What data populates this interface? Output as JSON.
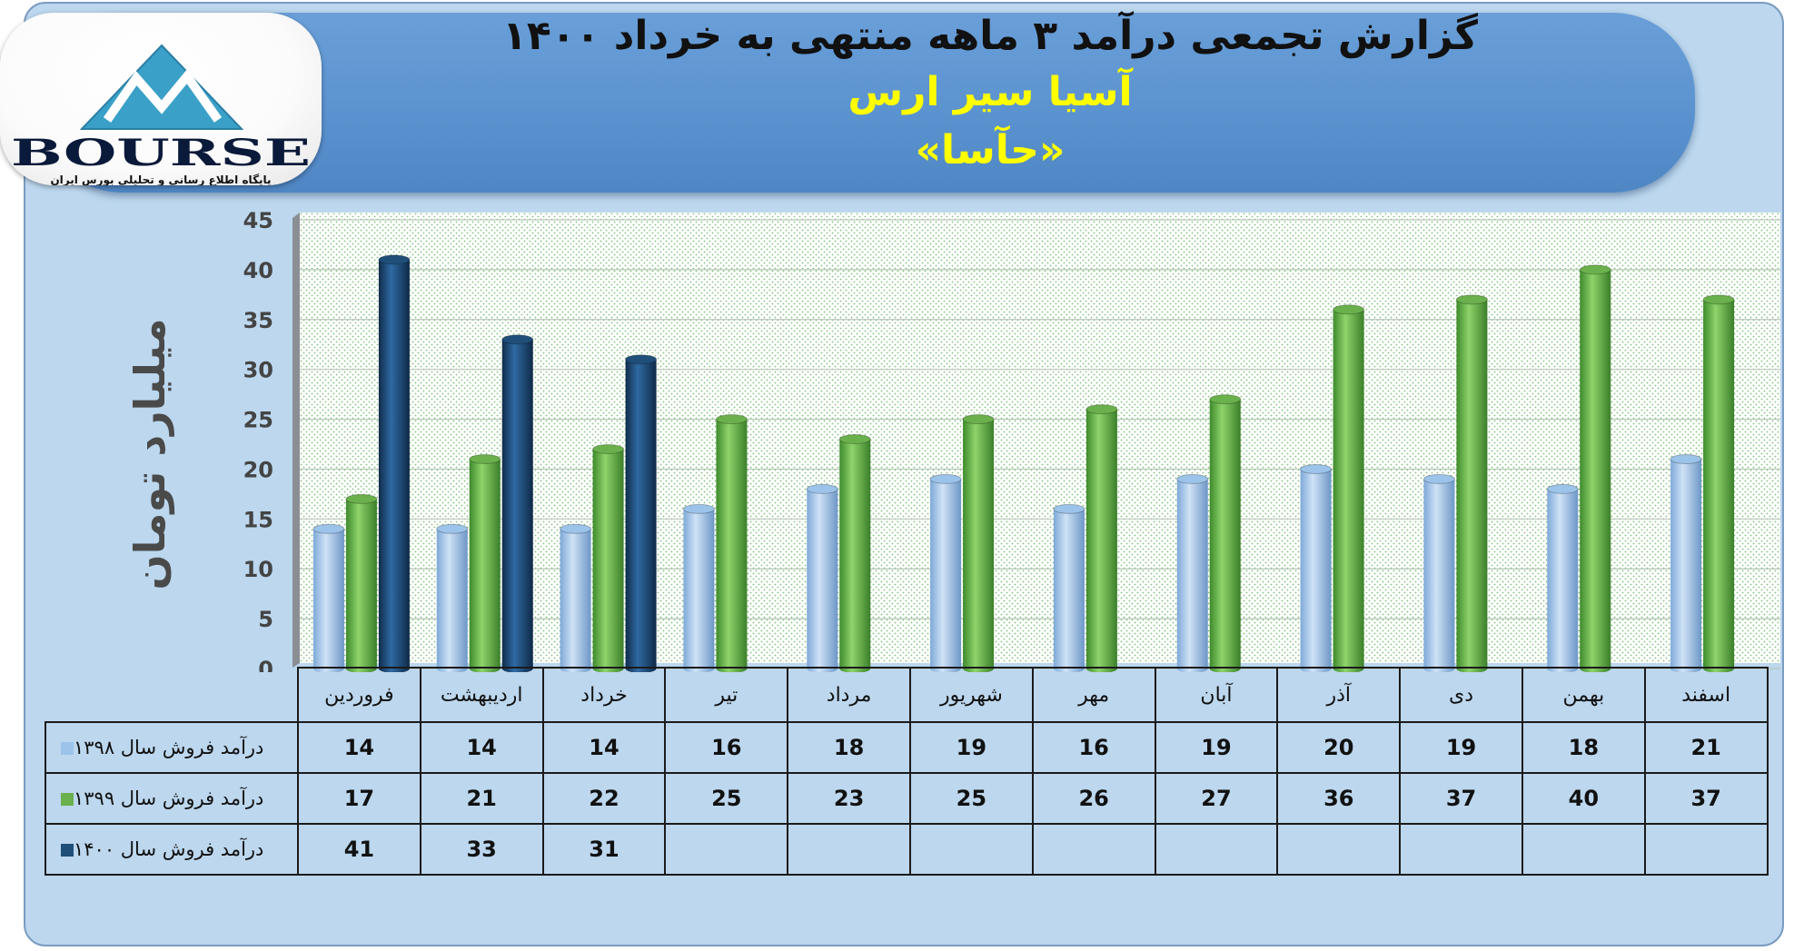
{
  "header": {
    "title": "گزارش تجمعی درآمد ۳ ماهه منتهی به خرداد ۱۴۰۰",
    "company": "آسیا سیر ارس",
    "symbol": "«حآسا»"
  },
  "logo": {
    "wordmark": "BOURSE",
    "tagline": "پایگاه اطلاع رسانی و تحلیلی بورس ایران"
  },
  "chart_data": {
    "type": "bar",
    "ylabel": "میلیارد تومان",
    "ylim": [
      0,
      45
    ],
    "yticks": [
      0,
      5,
      10,
      15,
      20,
      25,
      30,
      35,
      40,
      45
    ],
    "grid": true,
    "legend": "table-left",
    "categories": [
      "فروردین",
      "اردیبهشت",
      "خرداد",
      "تیر",
      "مرداد",
      "شهریور",
      "مهر",
      "آبان",
      "آذر",
      "دی",
      "بهمن",
      "اسفند"
    ],
    "series": [
      {
        "name": "درآمد فروش سال ۱۳۹۸",
        "color": "#9cc3ea",
        "values": [
          14,
          14,
          14,
          16,
          18,
          19,
          16,
          19,
          20,
          19,
          18,
          21
        ]
      },
      {
        "name": "درآمد فروش سال ۱۳۹۹",
        "color": "#6ab04c",
        "values": [
          17,
          21,
          22,
          25,
          23,
          25,
          26,
          27,
          36,
          37,
          40,
          37
        ]
      },
      {
        "name": "درآمد فروش سال ۱۴۰۰",
        "color": "#1f4e79",
        "values": [
          41,
          33,
          31,
          null,
          null,
          null,
          null,
          null,
          null,
          null,
          null,
          null
        ]
      }
    ]
  }
}
